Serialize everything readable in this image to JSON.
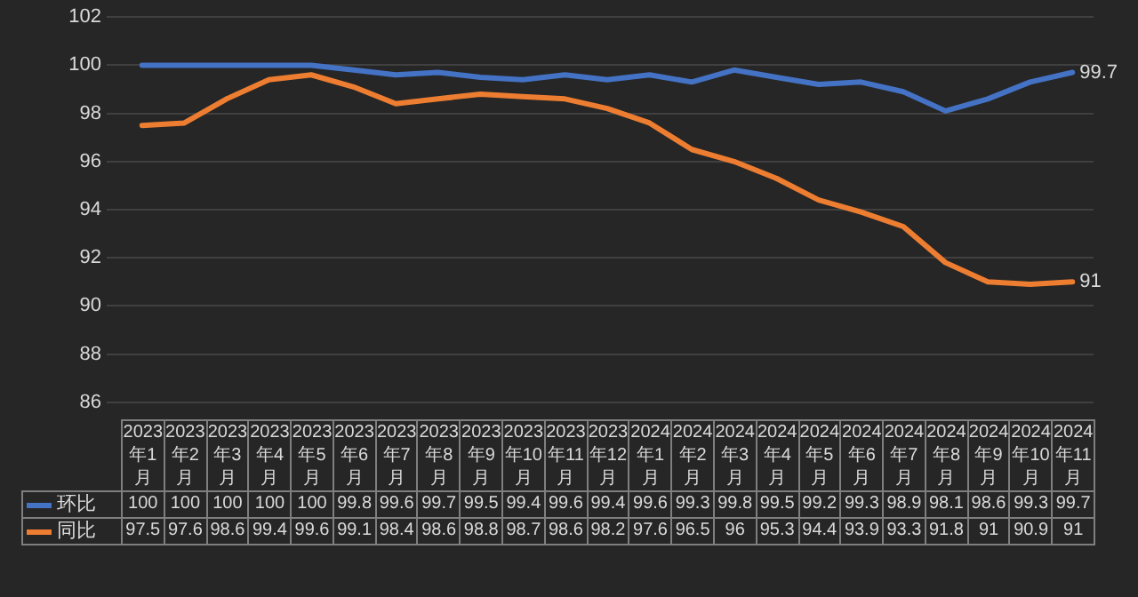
{
  "chart_data": {
    "type": "line",
    "categories": [
      "2023年1月",
      "2023年2月",
      "2023年3月",
      "2023年4月",
      "2023年5月",
      "2023年6月",
      "2023年7月",
      "2023年8月",
      "2023年9月",
      "2023年10月",
      "2023年11月",
      "2023年12月",
      "2024年1月",
      "2024年2月",
      "2024年3月",
      "2024年4月",
      "2024年5月",
      "2024年6月",
      "2024年7月",
      "2024年8月",
      "2024年9月",
      "2024年10月",
      "2024年11月"
    ],
    "series": [
      {
        "name": "环比",
        "color": "#4472c4",
        "values": [
          100,
          100,
          100,
          100,
          100,
          99.8,
          99.6,
          99.7,
          99.5,
          99.4,
          99.6,
          99.4,
          99.6,
          99.3,
          99.8,
          99.5,
          99.2,
          99.3,
          98.9,
          98.1,
          98.6,
          99.3,
          99.7
        ],
        "value_labels": [
          "100",
          "100",
          "100",
          "100",
          "100",
          "99.8",
          "99.6",
          "99.7",
          "99.5",
          "99.4",
          "99.6",
          "99.4",
          "99.6",
          "99.3",
          "99.8",
          "99.5",
          "99.2",
          "99.3",
          "98.9",
          "98.1",
          "98.6",
          "99.3",
          "99.7"
        ]
      },
      {
        "name": "同比",
        "color": "#ed7d31",
        "values": [
          97.5,
          97.6,
          98.6,
          99.4,
          99.6,
          99.1,
          98.4,
          98.6,
          98.8,
          98.7,
          98.6,
          98.2,
          97.6,
          96.5,
          96,
          95.3,
          94.4,
          93.9,
          93.3,
          91.8,
          91,
          90.9,
          91
        ],
        "value_labels": [
          "97.5",
          "97.6",
          "98.6",
          "99.4",
          "99.6",
          "99.1",
          "98.4",
          "98.6",
          "98.8",
          "98.7",
          "98.6",
          "98.2",
          "97.6",
          "96.5",
          "96",
          "95.3",
          "94.4",
          "93.9",
          "93.3",
          "91.8",
          "91",
          "90.9",
          "91"
        ]
      }
    ],
    "ylim": [
      86,
      102
    ],
    "yticks": [
      86,
      88,
      90,
      92,
      94,
      96,
      98,
      100,
      102
    ],
    "grid": "y",
    "legend": "bottom",
    "marker": "none",
    "line_style": "solid"
  }
}
